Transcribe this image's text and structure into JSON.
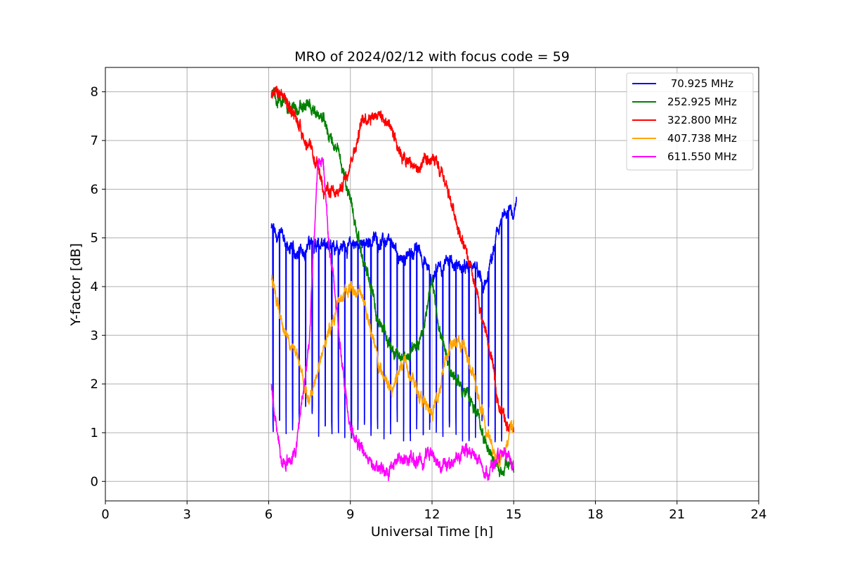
{
  "chart_data": {
    "type": "line",
    "title": "MRO of 2024/02/12 with focus code = 59",
    "xlabel": "Universal Time [h]",
    "ylabel": "Y-factor [dB]",
    "xlim": [
      0,
      24
    ],
    "ylim": [
      -0.4,
      8.5
    ],
    "xticks": [
      0,
      3,
      6,
      9,
      12,
      15,
      18,
      21,
      24
    ],
    "yticks": [
      0,
      1,
      2,
      3,
      4,
      5,
      6,
      7,
      8
    ],
    "grid": true,
    "legend_position": "top-right",
    "series": [
      {
        "name": "70.925 MHz",
        "legend_label": " 70.925 MHz",
        "color": "#0000ff",
        "x": [
          6.1,
          6.5,
          7.0,
          7.5,
          8.0,
          8.5,
          9.0,
          9.5,
          10.0,
          10.5,
          11.0,
          11.5,
          12.0,
          12.5,
          13.0,
          13.5,
          14.0,
          14.5,
          15.0,
          15.1
        ],
        "y": [
          5.2,
          5.0,
          4.6,
          4.9,
          4.8,
          4.9,
          4.8,
          4.9,
          5.0,
          4.8,
          4.6,
          4.8,
          4.2,
          4.5,
          4.4,
          4.3,
          4.1,
          5.3,
          5.6,
          5.8
        ],
        "dips": {
          "start": 6.15,
          "end": 15.0,
          "step": 0.24,
          "value": 0.8
        }
      },
      {
        "name": "252.925 MHz",
        "color": "#008000",
        "x": [
          6.1,
          6.5,
          7.0,
          7.5,
          8.0,
          8.5,
          9.0,
          9.5,
          10.0,
          10.5,
          11.0,
          11.5,
          12.0,
          12.5,
          13.0,
          13.5,
          14.0,
          14.5,
          15.0
        ],
        "y": [
          7.9,
          7.8,
          7.6,
          7.7,
          7.4,
          6.8,
          5.8,
          4.5,
          3.4,
          2.8,
          2.5,
          2.8,
          4.0,
          2.5,
          2.0,
          1.6,
          0.8,
          0.2,
          0.4
        ]
      },
      {
        "name": "322.800 MHz",
        "color": "#ff0000",
        "x": [
          6.1,
          6.5,
          7.0,
          7.5,
          8.0,
          8.5,
          9.0,
          9.5,
          10.0,
          10.5,
          11.0,
          11.5,
          12.0,
          12.5,
          13.0,
          13.5,
          14.0,
          14.5,
          15.0
        ],
        "y": [
          7.9,
          7.9,
          7.5,
          6.8,
          6.1,
          5.8,
          6.6,
          7.5,
          7.6,
          7.3,
          6.6,
          6.4,
          6.6,
          6.1,
          5.2,
          4.1,
          3.0,
          1.5,
          1.0
        ]
      },
      {
        "name": "407.738 MHz",
        "color": "#ffa500",
        "x": [
          6.1,
          6.5,
          7.0,
          7.5,
          8.0,
          8.5,
          9.0,
          9.5,
          10.0,
          10.5,
          11.0,
          11.5,
          12.0,
          12.5,
          13.0,
          13.5,
          14.0,
          14.5,
          15.0
        ],
        "y": [
          4.2,
          3.2,
          2.6,
          1.6,
          2.7,
          3.6,
          4.0,
          3.8,
          2.4,
          1.8,
          2.6,
          1.8,
          1.3,
          2.5,
          3.0,
          2.2,
          1.0,
          0.4,
          1.2
        ]
      },
      {
        "name": "611.550 MHz",
        "color": "#ff00ff",
        "x": [
          6.1,
          6.5,
          7.0,
          7.5,
          7.8,
          8.0,
          8.2,
          8.5,
          9.0,
          9.5,
          10.0,
          10.5,
          11.0,
          11.5,
          12.0,
          12.5,
          13.0,
          13.5,
          14.0,
          14.5,
          15.0
        ],
        "y": [
          1.9,
          0.3,
          0.6,
          3.0,
          6.5,
          6.7,
          5.0,
          3.5,
          1.0,
          0.6,
          0.2,
          0.3,
          0.5,
          0.4,
          0.6,
          0.3,
          0.5,
          0.6,
          0.2,
          0.5,
          0.3
        ]
      }
    ]
  }
}
